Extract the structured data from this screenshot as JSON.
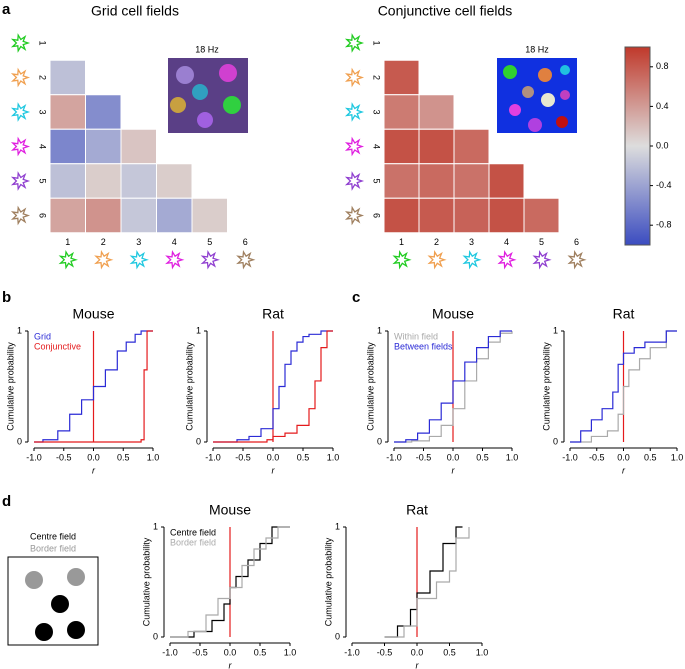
{
  "panels": [
    "a",
    "b",
    "c",
    "d"
  ],
  "schematic": {
    "labels": [
      "Centre field",
      "Border field"
    ]
  },
  "chart_data": [
    {
      "type": "heatmap",
      "title": "Grid cell fields",
      "inset_label": "18 Hz",
      "rows": [
        1,
        2,
        3,
        4,
        5,
        6
      ],
      "cols": [
        1,
        2,
        3,
        4,
        5,
        6
      ],
      "values": [
        [],
        [
          -0.2
        ],
        [
          0.35,
          -0.55
        ],
        [
          -0.6,
          -0.35,
          0.15
        ],
        [
          -0.2,
          0.1,
          -0.15,
          0.1
        ],
        [
          0.35,
          0.45,
          -0.15,
          -0.35,
          0.1
        ]
      ]
    },
    {
      "type": "heatmap",
      "title": "Conjunctive cell fields",
      "inset_label": "18 Hz",
      "rows": [
        1,
        2,
        3,
        4,
        5,
        6
      ],
      "cols": [
        1,
        2,
        3,
        4,
        5,
        6
      ],
      "values": [
        [],
        [
          0.8
        ],
        [
          0.6,
          0.45
        ],
        [
          0.85,
          0.85,
          0.7
        ],
        [
          0.65,
          0.7,
          0.65,
          0.85
        ],
        [
          0.85,
          0.8,
          0.75,
          0.85,
          0.7
        ]
      ]
    },
    {
      "type": "colorbar",
      "clim": [
        -1,
        1
      ],
      "cmap": [
        "#3b4cc0",
        "#dddddd",
        "#c0392b"
      ],
      "ticks": [
        0.8,
        0.4,
        {
          "value": 0,
          "label": "0.0"
        },
        -0.4,
        -0.8
      ]
    },
    {
      "type": "line",
      "step": true,
      "title": "Mouse",
      "x_label": "r",
      "y_label": "Cumulative probability",
      "xlim": [
        -1,
        1
      ],
      "ylim": [
        0,
        1
      ],
      "xticks": [
        {
          "value": -1,
          "label": "-1.0"
        },
        -0.5,
        {
          "value": 0,
          "label": "0.0"
        },
        0.5,
        {
          "value": 1,
          "label": "1.0"
        }
      ],
      "yticks": [
        0,
        1
      ],
      "reference_x": 0,
      "reference_color": "#e41a1c",
      "legend": true,
      "series": [
        {
          "name": "Grid",
          "color": "#2b2bd6",
          "x": [
            -1,
            -0.85,
            -0.6,
            -0.4,
            -0.2,
            0,
            0.2,
            0.4,
            0.55,
            0.7,
            0.8,
            1
          ],
          "values": [
            0,
            0.02,
            0.1,
            0.25,
            0.38,
            0.5,
            0.65,
            0.82,
            0.9,
            0.97,
            1,
            1
          ]
        },
        {
          "name": "Conjunctive",
          "color": "#e41a1c",
          "x": [
            -1,
            0.75,
            0.8,
            0.85,
            0.9,
            1
          ],
          "values": [
            0,
            0,
            0.02,
            0.65,
            1,
            1
          ]
        }
      ]
    },
    {
      "type": "line",
      "step": true,
      "title": "Rat",
      "x_label": "r",
      "y_label": "Cumulative probability",
      "xlim": [
        -1,
        1
      ],
      "ylim": [
        0,
        1
      ],
      "xticks": [
        {
          "value": -1,
          "label": "-1.0"
        },
        -0.5,
        {
          "value": 0,
          "label": "0.0"
        },
        0.5,
        {
          "value": 1,
          "label": "1.0"
        }
      ],
      "yticks": [
        0,
        1
      ],
      "reference_x": 0,
      "reference_color": "#e41a1c",
      "legend": false,
      "series": [
        {
          "name": "Grid",
          "color": "#2b2bd6",
          "x": [
            -1,
            -0.6,
            -0.4,
            -0.2,
            0,
            0.1,
            0.2,
            0.3,
            0.4,
            0.5,
            0.6,
            0.8,
            1
          ],
          "values": [
            0,
            0.02,
            0.05,
            0.12,
            0.3,
            0.5,
            0.7,
            0.82,
            0.9,
            0.95,
            0.97,
            1,
            1
          ]
        },
        {
          "name": "Conjunctive",
          "color": "#e41a1c",
          "x": [
            -1,
            -0.4,
            -0.1,
            0,
            0.2,
            0.4,
            0.6,
            0.7,
            0.8,
            0.9,
            1
          ],
          "values": [
            0,
            0,
            0.02,
            0.05,
            0.08,
            0.15,
            0.3,
            0.55,
            0.85,
            1,
            1
          ]
        }
      ]
    },
    {
      "type": "line",
      "step": true,
      "title": "Mouse",
      "x_label": "r",
      "y_label": "Cumulative probability",
      "xlim": [
        -1,
        1
      ],
      "ylim": [
        0,
        1
      ],
      "xticks": [
        {
          "value": -1,
          "label": "-1.0"
        },
        -0.5,
        {
          "value": 0,
          "label": "0.0"
        },
        0.5,
        {
          "value": 1,
          "label": "1.0"
        }
      ],
      "yticks": [
        0,
        1
      ],
      "reference_x": 0,
      "reference_color": "#e41a1c",
      "legend": true,
      "series": [
        {
          "name": "Within field",
          "color": "#aaaaaa",
          "x": [
            -1,
            -0.7,
            -0.4,
            -0.2,
            0,
            0.2,
            0.4,
            0.6,
            0.8,
            1
          ],
          "values": [
            0,
            0.01,
            0.05,
            0.15,
            0.3,
            0.55,
            0.75,
            0.9,
            0.98,
            1
          ]
        },
        {
          "name": "Between fields",
          "color": "#2b2bd6",
          "x": [
            -1,
            -0.8,
            -0.6,
            -0.4,
            -0.2,
            0,
            0.2,
            0.4,
            0.6,
            0.8,
            1
          ],
          "values": [
            0,
            0.02,
            0.08,
            0.2,
            0.35,
            0.55,
            0.72,
            0.85,
            0.95,
            1,
            1
          ]
        }
      ]
    },
    {
      "type": "line",
      "step": true,
      "title": "Rat",
      "x_label": "r",
      "y_label": "Cumulative probability",
      "xlim": [
        -1,
        1
      ],
      "ylim": [
        0,
        1
      ],
      "xticks": [
        {
          "value": -1,
          "label": "-1.0"
        },
        -0.5,
        {
          "value": 0,
          "label": "0.0"
        },
        0.5,
        {
          "value": 1,
          "label": "1.0"
        }
      ],
      "yticks": [
        0,
        1
      ],
      "reference_x": 0,
      "reference_color": "#e41a1c",
      "legend": false,
      "series": [
        {
          "name": "Within field",
          "color": "#aaaaaa",
          "x": [
            -1,
            -0.6,
            -0.3,
            -0.1,
            0,
            0.1,
            0.3,
            0.5,
            0.8,
            1
          ],
          "values": [
            0,
            0.05,
            0.1,
            0.25,
            0.5,
            0.65,
            0.75,
            0.85,
            1,
            1
          ]
        },
        {
          "name": "Between fields",
          "color": "#2b2bd6",
          "x": [
            -1,
            -0.8,
            -0.6,
            -0.4,
            -0.2,
            -0.1,
            0,
            0.2,
            0.4,
            0.6,
            0.8,
            1
          ],
          "values": [
            0,
            0.1,
            0.2,
            0.3,
            0.45,
            0.7,
            0.8,
            0.85,
            0.9,
            0.9,
            1,
            1
          ]
        }
      ]
    },
    {
      "type": "line",
      "step": true,
      "title": "Mouse",
      "x_label": "r",
      "y_label": "Cumulative probability",
      "xlim": [
        -1,
        1
      ],
      "ylim": [
        0,
        1
      ],
      "xticks": [
        {
          "value": -1,
          "label": "-1.0"
        },
        -0.5,
        {
          "value": 0,
          "label": "0.0"
        },
        0.5,
        {
          "value": 1,
          "label": "1.0"
        }
      ],
      "yticks": [
        0,
        1
      ],
      "reference_x": 0,
      "reference_color": "#e41a1c",
      "legend": true,
      "series": [
        {
          "name": "Centre field",
          "color": "#000000",
          "x": [
            -1,
            -0.6,
            -0.3,
            -0.1,
            0,
            0.1,
            0.3,
            0.5,
            0.7,
            0.9,
            1
          ],
          "values": [
            0,
            0.05,
            0.15,
            0.3,
            0.45,
            0.55,
            0.7,
            0.85,
            1,
            1,
            1
          ]
        },
        {
          "name": "Border field",
          "color": "#aaaaaa",
          "x": [
            -1,
            -0.7,
            -0.4,
            -0.2,
            0,
            0.2,
            0.4,
            0.6,
            0.8,
            1
          ],
          "values": [
            0,
            0.05,
            0.2,
            0.35,
            0.45,
            0.65,
            0.8,
            0.9,
            1,
            1
          ]
        }
      ]
    },
    {
      "type": "line",
      "step": true,
      "title": "Rat",
      "x_label": "r",
      "y_label": "Cumulative probability",
      "xlim": [
        -1,
        1
      ],
      "ylim": [
        0,
        1
      ],
      "xticks": [
        {
          "value": -1,
          "label": "-1.0"
        },
        -0.5,
        {
          "value": 0,
          "label": "0.0"
        },
        0.5,
        {
          "value": 1,
          "label": "1.0"
        }
      ],
      "yticks": [
        0,
        1
      ],
      "reference_x": 0,
      "reference_color": "#e41a1c",
      "legend": false,
      "series": [
        {
          "name": "Centre field",
          "color": "#000000",
          "x": [
            -0.5,
            -0.3,
            -0.1,
            0,
            0.2,
            0.4,
            0.6,
            0.7
          ],
          "values": [
            0,
            0.1,
            0.25,
            0.4,
            0.6,
            0.85,
            1,
            1
          ]
        },
        {
          "name": "Border field",
          "color": "#aaaaaa",
          "x": [
            -0.5,
            -0.2,
            0,
            0.3,
            0.5,
            0.6,
            0.8
          ],
          "values": [
            0,
            0.1,
            0.35,
            0.5,
            0.6,
            0.9,
            1
          ]
        }
      ]
    }
  ]
}
